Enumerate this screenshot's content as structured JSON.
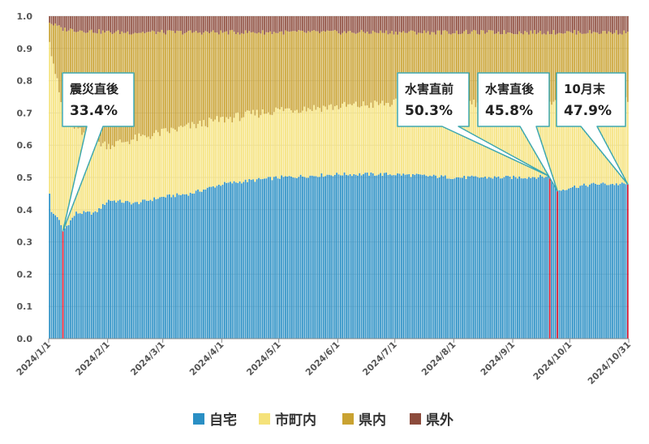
{
  "chart_data": {
    "type": "bar",
    "stacked": true,
    "x_start": "2024-01-01",
    "x_end": "2024-10-31",
    "ylim": [
      0,
      1
    ],
    "yticks": [
      "0.0",
      "0.1",
      "0.2",
      "0.3",
      "0.4",
      "0.5",
      "0.6",
      "0.7",
      "0.8",
      "0.9",
      "1.0"
    ],
    "xtick_labels": [
      "2024/1/1",
      "2024/2/1",
      "2024/3/1",
      "2024/4/1",
      "2024/5/1",
      "2024/6/1",
      "2024/7/1",
      "2024/8/1",
      "2024/9/1",
      "2024/10/1",
      "2024/10/31"
    ],
    "grid": true,
    "series": [
      {
        "name": "自宅",
        "color": "#2a8fc4"
      },
      {
        "name": "市町内",
        "color": "#f5e27a"
      },
      {
        "name": "県内",
        "color": "#c9a231"
      },
      {
        "name": "県外",
        "color": "#8c4b3c"
      }
    ],
    "highlight_color": "#d0102a",
    "series_daily": {
      "自宅": [
        [
          "2024-01-01",
          0.45
        ],
        [
          "2024-01-02",
          0.39
        ],
        [
          "2024-01-05",
          0.38
        ],
        [
          "2024-01-08",
          0.334
        ],
        [
          "2024-01-15",
          0.39
        ],
        [
          "2024-01-25",
          0.39
        ],
        [
          "2024-02-01",
          0.43
        ],
        [
          "2024-02-15",
          0.42
        ],
        [
          "2024-03-01",
          0.44
        ],
        [
          "2024-03-15",
          0.45
        ],
        [
          "2024-04-01",
          0.48
        ],
        [
          "2024-04-15",
          0.49
        ],
        [
          "2024-05-01",
          0.5
        ],
        [
          "2024-06-01",
          0.51
        ],
        [
          "2024-07-01",
          0.51
        ],
        [
          "2024-08-01",
          0.5
        ],
        [
          "2024-09-01",
          0.5
        ],
        [
          "2024-09-20",
          0.503
        ],
        [
          "2024-09-24",
          0.458
        ],
        [
          "2024-10-01",
          0.47
        ],
        [
          "2024-10-15",
          0.48
        ],
        [
          "2024-10-31",
          0.479
        ]
      ],
      "県内": [
        [
          "2024-01-01",
          0.98
        ],
        [
          "2024-01-08",
          0.96
        ],
        [
          "2024-02-01",
          0.95
        ],
        [
          "2024-03-01",
          0.95
        ],
        [
          "2024-05-01",
          0.95
        ],
        [
          "2024-07-01",
          0.95
        ],
        [
          "2024-09-01",
          0.95
        ],
        [
          "2024-10-31",
          0.95
        ]
      ],
      "市町内": [
        [
          "2024-01-01",
          0.92
        ],
        [
          "2024-01-08",
          0.7
        ],
        [
          "2024-01-20",
          0.62
        ],
        [
          "2024-02-01",
          0.6
        ],
        [
          "2024-03-01",
          0.64
        ],
        [
          "2024-04-01",
          0.68
        ],
        [
          "2024-05-01",
          0.71
        ],
        [
          "2024-06-01",
          0.72
        ],
        [
          "2024-07-01",
          0.73
        ],
        [
          "2024-08-01",
          0.73
        ],
        [
          "2024-09-01",
          0.73
        ],
        [
          "2024-10-01",
          0.74
        ],
        [
          "2024-10-31",
          0.74
        ]
      ]
    },
    "annotations": [
      {
        "title": "震災直後",
        "value": "33.4%",
        "date": "2024-01-08",
        "y": 0.334
      },
      {
        "title": "水害直前",
        "value": "50.3%",
        "date": "2024-09-20",
        "y": 0.503
      },
      {
        "title": "水害直後",
        "value": "45.8%",
        "date": "2024-09-24",
        "y": 0.458
      },
      {
        "title": "10月末",
        "value": "47.9%",
        "date": "2024-10-31",
        "y": 0.479
      }
    ]
  }
}
